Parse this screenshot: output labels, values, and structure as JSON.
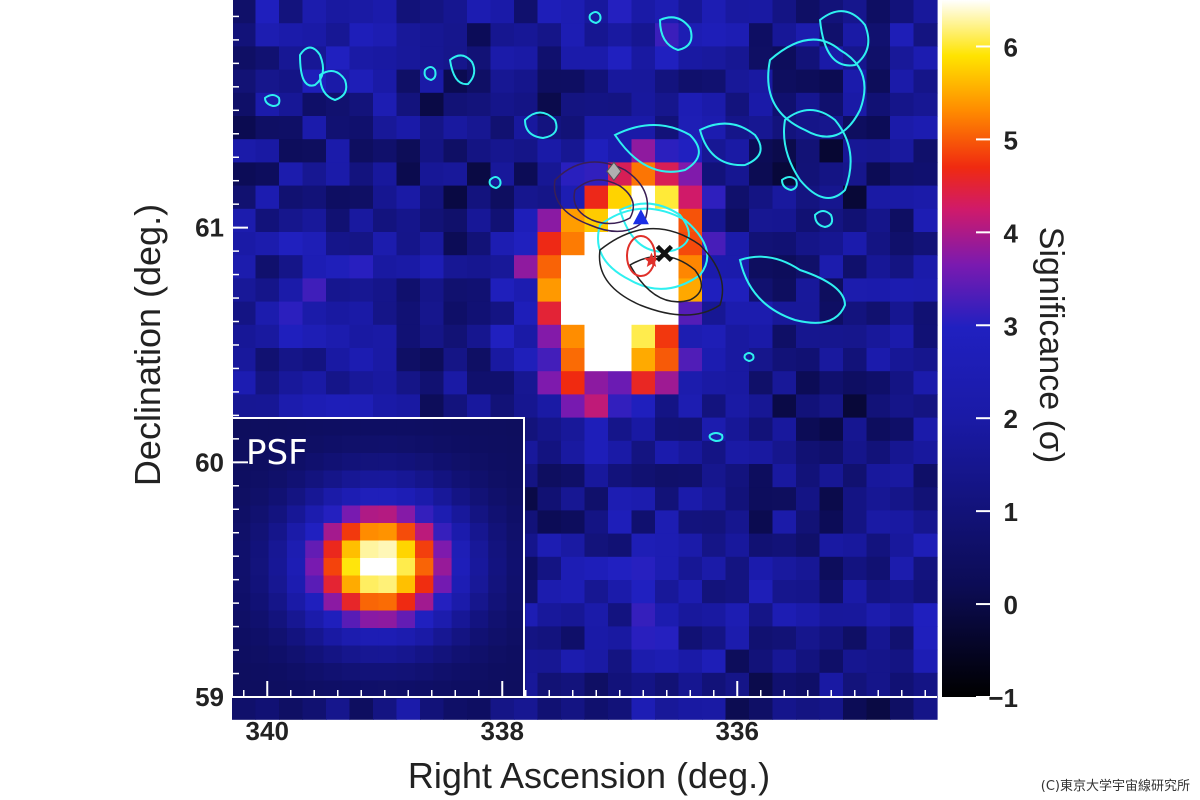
{
  "chart_data": {
    "type": "heatmap",
    "xlabel": "Right Ascension (deg.)",
    "ylabel": "Declination (deg.)",
    "colorbar_label": "Significance (σ)",
    "x_ticks": [
      "340",
      "338",
      "336"
    ],
    "x_tick_values": [
      340,
      338,
      336
    ],
    "y_ticks": [
      "61",
      "60",
      "59"
    ],
    "y_tick_values": [
      61,
      60,
      59
    ],
    "xlim": [
      340.3,
      334.3
    ],
    "ylim": [
      59.0,
      61.97
    ],
    "colorbar_ticks": [
      "6",
      "5",
      "4",
      "3",
      "2",
      "1",
      "0",
      "−1"
    ],
    "colorbar_values": [
      6,
      5,
      4,
      3,
      2,
      1,
      0,
      -1
    ],
    "colorbar_range": [
      -1,
      6.5
    ],
    "grid": false,
    "inset_label": "PSF",
    "sources": [
      {
        "ra": 337.15,
        "dec": 60.7,
        "peak": 6.5,
        "sigma_ra": 0.42,
        "sigma_dec": 0.28
      },
      {
        "ra": 336.75,
        "dec": 60.95,
        "peak": 5.0,
        "sigma_ra": 0.28,
        "sigma_dec": 0.22
      }
    ],
    "markers": [
      {
        "symbol": "diamond",
        "ra": 337.05,
        "dec": 61.24,
        "color": "#b0b0b0"
      },
      {
        "symbol": "triangle",
        "ra": 336.82,
        "dec": 61.04,
        "color": "#1b2ee6"
      },
      {
        "symbol": "star",
        "ra": 336.73,
        "dec": 60.86,
        "color": "#e0302a"
      },
      {
        "symbol": "cross",
        "ra": 336.62,
        "dec": 60.89,
        "color": "#111111"
      }
    ]
  },
  "credit": "(C)東京大学宇宙線研究所"
}
